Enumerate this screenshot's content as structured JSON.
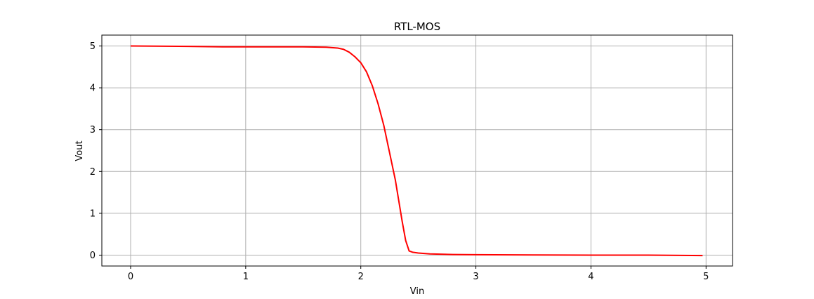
{
  "chart_data": {
    "type": "line",
    "title": "RTL-MOS",
    "xlabel": "Vin",
    "ylabel": "Vout",
    "xlim": [
      -0.25,
      5.23
    ],
    "ylim": [
      -0.26,
      5.26
    ],
    "xticks": [
      0,
      1,
      2,
      3,
      4,
      5
    ],
    "yticks": [
      0,
      1,
      2,
      3,
      4,
      5
    ],
    "xtick_labels": [
      "0",
      "1",
      "2",
      "3",
      "4",
      "5"
    ],
    "ytick_labels": [
      "0",
      "1",
      "2",
      "3",
      "4",
      "5"
    ],
    "grid": true,
    "series": [
      {
        "color": "#ff0000",
        "x": [
          0,
          0.5,
          0.8,
          1.0,
          1.5,
          1.7,
          1.8,
          1.85,
          1.9,
          1.95,
          2.0,
          2.05,
          2.1,
          2.15,
          2.2,
          2.25,
          2.3,
          2.33,
          2.36,
          2.39,
          2.42,
          2.45,
          2.5,
          2.6,
          2.8,
          3.0,
          3.5,
          4.0,
          4.5,
          4.97
        ],
        "y": [
          5.0,
          4.99,
          4.98,
          4.98,
          4.98,
          4.97,
          4.95,
          4.92,
          4.85,
          4.74,
          4.6,
          4.38,
          4.05,
          3.62,
          3.1,
          2.45,
          1.8,
          1.3,
          0.8,
          0.35,
          0.1,
          0.07,
          0.05,
          0.03,
          0.015,
          0.01,
          0.005,
          0.0,
          0.0,
          -0.01
        ]
      }
    ]
  }
}
